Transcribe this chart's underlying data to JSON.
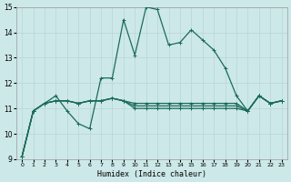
{
  "xlabel": "Humidex (Indice chaleur)",
  "ylabel": "",
  "xlim": [
    -0.5,
    23.5
  ],
  "ylim": [
    9,
    15
  ],
  "yticks": [
    9,
    10,
    11,
    12,
    13,
    14,
    15
  ],
  "xticks": [
    0,
    1,
    2,
    3,
    4,
    5,
    6,
    7,
    8,
    9,
    10,
    11,
    12,
    13,
    14,
    15,
    16,
    17,
    18,
    19,
    20,
    21,
    22,
    23
  ],
  "background_color": "#cde8e8",
  "grid_color": "#b8d4d4",
  "line_color": "#1a6b5a",
  "series": [
    [
      9.1,
      10.9,
      11.2,
      11.5,
      10.9,
      10.4,
      10.2,
      12.2,
      12.2,
      14.5,
      13.1,
      15.0,
      14.9,
      13.5,
      13.6,
      14.1,
      13.7,
      13.3,
      12.6,
      11.5,
      10.9,
      11.5,
      11.2,
      11.3
    ],
    [
      9.1,
      10.9,
      11.2,
      11.3,
      11.3,
      11.2,
      11.3,
      11.3,
      11.4,
      11.3,
      11.2,
      11.2,
      11.2,
      11.2,
      11.2,
      11.2,
      11.2,
      11.2,
      11.2,
      11.2,
      10.9,
      11.5,
      11.2,
      11.3
    ],
    [
      9.1,
      10.9,
      11.2,
      11.3,
      11.3,
      11.2,
      11.3,
      11.3,
      11.4,
      11.3,
      11.1,
      11.1,
      11.1,
      11.1,
      11.1,
      11.1,
      11.1,
      11.1,
      11.1,
      11.1,
      10.9,
      11.5,
      11.2,
      11.3
    ],
    [
      9.1,
      10.9,
      11.2,
      11.3,
      11.3,
      11.2,
      11.3,
      11.3,
      11.4,
      11.3,
      11.0,
      11.0,
      11.0,
      11.0,
      11.0,
      11.0,
      11.0,
      11.0,
      11.0,
      11.0,
      10.9,
      11.5,
      11.2,
      11.3
    ]
  ]
}
